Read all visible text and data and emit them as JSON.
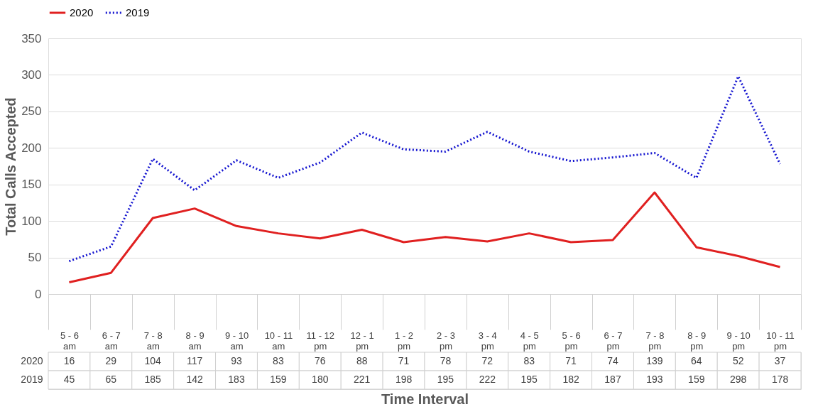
{
  "chart_data": {
    "type": "line",
    "xlabel": "Time Interval",
    "ylabel": "Total Calls Accepted",
    "categories": [
      "5 - 6 am",
      "6 - 7 am",
      "7 - 8 am",
      "8 - 9 am",
      "9 - 10 am",
      "10 - 11 am",
      "11 - 12 pm",
      "12 - 1 pm",
      "1 - 2 pm",
      "2 - 3 pm",
      "3 - 4 pm",
      "4 - 5 pm",
      "5 - 6 pm",
      "6 - 7 pm",
      "7 - 8 pm",
      "8 - 9 pm",
      "9 - 10 pm",
      "10 - 11 pm"
    ],
    "series": [
      {
        "name": "2020",
        "color": "#e02020",
        "line_style": "solid",
        "values": [
          16,
          29,
          104,
          117,
          93,
          83,
          76,
          88,
          71,
          78,
          72,
          83,
          71,
          74,
          139,
          64,
          52,
          37
        ]
      },
      {
        "name": "2019",
        "color": "#1515d0",
        "line_style": "dotted",
        "values": [
          45,
          65,
          185,
          142,
          183,
          159,
          180,
          221,
          198,
          195,
          222,
          195,
          182,
          187,
          193,
          159,
          298,
          178
        ]
      }
    ],
    "ylim": [
      0,
      350
    ],
    "yticks": [
      0,
      50,
      100,
      150,
      200,
      250,
      300,
      350
    ],
    "grid": "y",
    "legend": "top",
    "data_labels": true,
    "marker": "none"
  }
}
